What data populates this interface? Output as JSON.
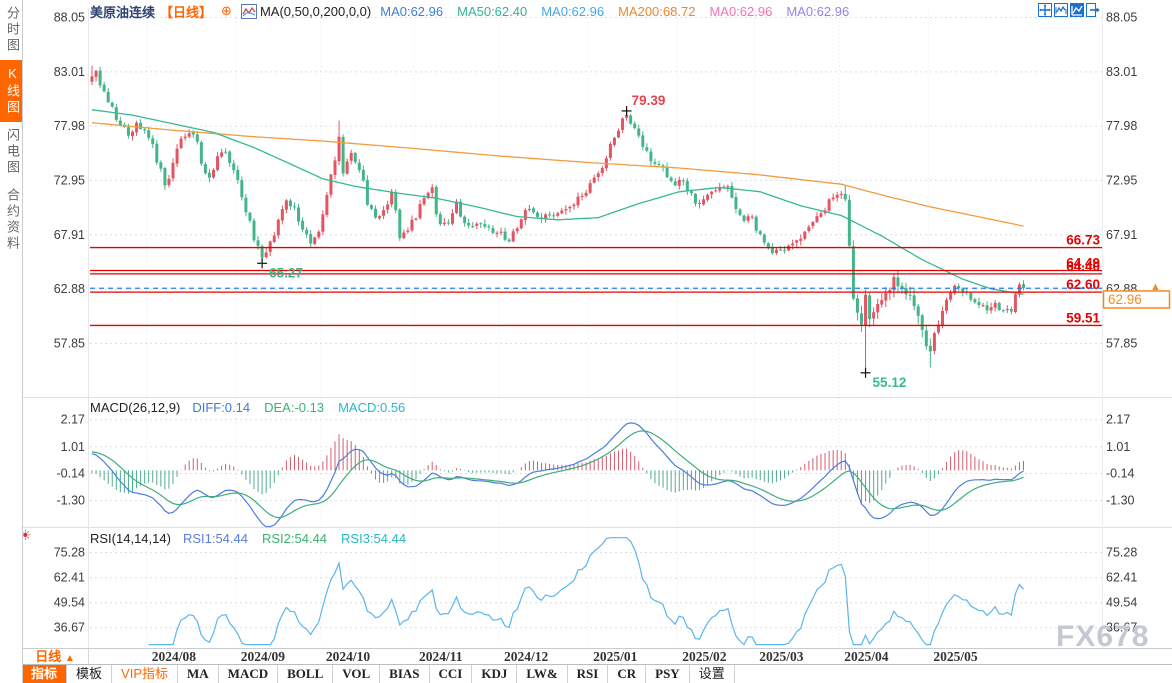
{
  "window": {
    "watermark": "FX678"
  },
  "sidebar": {
    "items": [
      {
        "label": "分时图",
        "active": false
      },
      {
        "label": "K线图",
        "active": true
      },
      {
        "label": "闪电图",
        "active": false
      },
      {
        "label": "合约资料",
        "active": false
      }
    ]
  },
  "header": {
    "symbol": "美原油连续",
    "period_tag": "【日线】",
    "plus_icon": "⊕",
    "ma_formula": "MA(0,50,0,200,0,0)",
    "ma_values": [
      {
        "label": "MA0:62.96",
        "color": "#3d7dd6"
      },
      {
        "label": "MA50:62.40",
        "color": "#33b294"
      },
      {
        "label": "MA0:62.96",
        "color": "#45a7e6"
      },
      {
        "label": "MA200:68.72",
        "color": "#f0862b"
      },
      {
        "label": "MA0:62.96",
        "color": "#f273b4"
      },
      {
        "label": "MA0:62.96",
        "color": "#8f86e8"
      }
    ],
    "icons": [
      "crosshair-move-icon",
      "candlestick-chart-icon",
      "line-chart-icon",
      "exit-chart-icon"
    ]
  },
  "price_panel": {
    "axis_values": [
      "88.05",
      "83.01",
      "77.98",
      "72.95",
      "67.91",
      "62.88",
      "57.85"
    ],
    "current_price": "62.96",
    "up_arrow": "▲"
  },
  "macd_panel": {
    "title": "MACD(26,12,9)",
    "values": [
      {
        "label": "DIFF:0.14",
        "color": "#3d7dd6"
      },
      {
        "label": "DEA:-0.13",
        "color": "#3bb273"
      },
      {
        "label": "MACD:0.56",
        "color": "#28b8c8"
      }
    ],
    "axis_values": [
      "2.17",
      "1.01",
      "-0.14",
      "-1.30"
    ]
  },
  "rsi_panel": {
    "title": "RSI(14,14,14)",
    "values": [
      {
        "label": "RSI1:54.44",
        "color": "#5b7de0"
      },
      {
        "label": "RSI2:54.44",
        "color": "#3bb273"
      },
      {
        "label": "RSI3:54.44",
        "color": "#28b8c8"
      }
    ],
    "axis_values": [
      "75.28",
      "62.41",
      "49.54",
      "36.67"
    ]
  },
  "bottom": {
    "period_label": "日线",
    "period_arrow": "▲"
  },
  "toolbar": {
    "tabs": [
      {
        "label": "指标",
        "variant": "active",
        "cn": true
      },
      {
        "label": "模板",
        "variant": "",
        "cn": true
      },
      {
        "label": "VIP指标",
        "variant": "vip",
        "cn": true
      },
      {
        "label": "MA",
        "variant": "",
        "cn": false
      },
      {
        "label": "MACD",
        "variant": "",
        "cn": false
      },
      {
        "label": "BOLL",
        "variant": "",
        "cn": false
      },
      {
        "label": "VOL",
        "variant": "",
        "cn": false
      },
      {
        "label": "BIAS",
        "variant": "",
        "cn": false
      },
      {
        "label": "CCI",
        "variant": "",
        "cn": false
      },
      {
        "label": "KDJ",
        "variant": "",
        "cn": false
      },
      {
        "label": "LW&",
        "variant": "",
        "cn": false
      },
      {
        "label": "RSI",
        "variant": "",
        "cn": false
      },
      {
        "label": "CR",
        "variant": "",
        "cn": false
      },
      {
        "label": "PSY",
        "variant": "",
        "cn": false
      },
      {
        "label": "设置",
        "variant": "",
        "cn": true
      }
    ]
  },
  "chart_data": {
    "type": "candlestick",
    "title": "美原油连续 日线",
    "days_total": 231,
    "months": [
      {
        "label": "2024/08",
        "start": 14
      },
      {
        "label": "2024/09",
        "start": 36
      },
      {
        "label": "2024/10",
        "start": 57
      },
      {
        "label": "2024/11",
        "start": 80
      },
      {
        "label": "2024/12",
        "start": 101
      },
      {
        "label": "2025/01",
        "start": 123
      },
      {
        "label": "2025/02",
        "start": 145
      },
      {
        "label": "2025/03",
        "start": 164
      },
      {
        "label": "2025/04",
        "start": 185
      },
      {
        "label": "2025/05",
        "start": 207
      }
    ],
    "price": {
      "ylim": [
        55.0,
        88.6
      ],
      "axis": [
        88.05,
        83.01,
        77.98,
        72.95,
        67.91,
        62.88,
        57.85
      ],
      "levels": [
        66.73,
        64.49,
        64.4,
        62.6,
        59.51
      ],
      "level_labels": [
        "66.73",
        "64.49",
        "64.40",
        "62.60",
        "59.51"
      ],
      "dashed_line": 62.96,
      "current": 62.96,
      "anchors": [
        [
          0,
          82.6
        ],
        [
          1,
          83.1
        ],
        [
          3,
          81.2
        ],
        [
          5,
          79.8
        ],
        [
          7,
          78.1
        ],
        [
          9,
          77.1
        ],
        [
          11,
          78.3
        ],
        [
          13,
          77.6
        ],
        [
          14,
          76.9
        ],
        [
          16,
          74.6
        ],
        [
          18,
          72.5
        ],
        [
          19,
          73.1
        ],
        [
          21,
          75.9
        ],
        [
          23,
          77.0
        ],
        [
          25,
          77.2
        ],
        [
          27,
          74.5
        ],
        [
          29,
          73.2
        ],
        [
          31,
          75.2
        ],
        [
          33,
          75.6
        ],
        [
          35,
          73.9
        ],
        [
          36,
          73.0
        ],
        [
          38,
          70.0
        ],
        [
          40,
          67.4
        ],
        [
          42,
          65.8
        ],
        [
          44,
          67.3
        ],
        [
          46,
          69.3
        ],
        [
          48,
          71.1
        ],
        [
          50,
          70.5
        ],
        [
          52,
          68.4
        ],
        [
          54,
          67.1
        ],
        [
          56,
          68.2
        ],
        [
          57,
          69.8
        ],
        [
          58,
          71.6
        ],
        [
          59,
          73.5
        ],
        [
          60,
          74.8
        ],
        [
          61,
          77.0
        ],
        [
          62,
          73.6
        ],
        [
          64,
          75.5
        ],
        [
          66,
          73.9
        ],
        [
          68,
          70.7
        ],
        [
          70,
          69.5
        ],
        [
          72,
          70.2
        ],
        [
          74,
          71.9
        ],
        [
          76,
          67.6
        ],
        [
          78,
          68.3
        ],
        [
          79,
          69.3
        ],
        [
          80,
          69.4
        ],
        [
          82,
          71.3
        ],
        [
          84,
          72.3
        ],
        [
          86,
          68.9
        ],
        [
          88,
          69.0
        ],
        [
          90,
          71.0
        ],
        [
          92,
          69.0
        ],
        [
          94,
          68.7
        ],
        [
          96,
          68.9
        ],
        [
          98,
          68.6
        ],
        [
          100,
          68.1
        ],
        [
          101,
          68.2
        ],
        [
          103,
          67.3
        ],
        [
          105,
          68.5
        ],
        [
          107,
          70.2
        ],
        [
          109,
          70.0
        ],
        [
          111,
          69.4
        ],
        [
          113,
          69.7
        ],
        [
          115,
          69.9
        ],
        [
          117,
          70.3
        ],
        [
          119,
          70.7
        ],
        [
          121,
          71.5
        ],
        [
          122,
          71.8
        ],
        [
          123,
          72.7
        ],
        [
          125,
          73.6
        ],
        [
          127,
          75.0
        ],
        [
          129,
          76.9
        ],
        [
          131,
          78.7
        ],
        [
          132,
          79.0
        ],
        [
          133,
          78.2
        ],
        [
          135,
          77.1
        ],
        [
          137,
          75.7
        ],
        [
          139,
          74.5
        ],
        [
          141,
          74.2
        ],
        [
          143,
          72.9
        ],
        [
          144,
          72.5
        ],
        [
          145,
          73.0
        ],
        [
          147,
          72.0
        ],
        [
          149,
          70.8
        ],
        [
          151,
          71.2
        ],
        [
          153,
          71.9
        ],
        [
          155,
          72.3
        ],
        [
          157,
          72.4
        ],
        [
          159,
          70.3
        ],
        [
          161,
          69.2
        ],
        [
          163,
          69.6
        ],
        [
          164,
          68.3
        ],
        [
          166,
          67.2
        ],
        [
          168,
          66.2
        ],
        [
          170,
          66.5
        ],
        [
          172,
          66.9
        ],
        [
          174,
          67.4
        ],
        [
          176,
          68.2
        ],
        [
          178,
          69.1
        ],
        [
          180,
          69.9
        ],
        [
          182,
          71.2
        ],
        [
          184,
          71.6
        ],
        [
          185,
          71.7
        ],
        [
          186,
          71.2
        ],
        [
          187,
          66.9
        ],
        [
          188,
          61.99
        ],
        [
          189,
          60.7
        ],
        [
          190,
          59.6
        ],
        [
          191,
          62.35
        ],
        [
          192,
          60.1
        ],
        [
          194,
          61.5
        ],
        [
          196,
          62.5
        ],
        [
          198,
          64.0
        ],
        [
          200,
          63.0
        ],
        [
          202,
          62.3
        ],
        [
          204,
          60.4
        ],
        [
          205,
          59.1
        ],
        [
          206,
          57.6
        ],
        [
          207,
          57.1
        ],
        [
          208,
          58.8
        ],
        [
          209,
          59.6
        ],
        [
          211,
          61.9
        ],
        [
          213,
          63.2
        ],
        [
          215,
          62.6
        ],
        [
          217,
          61.9
        ],
        [
          219,
          61.4
        ],
        [
          221,
          60.9
        ],
        [
          223,
          61.6
        ],
        [
          225,
          60.9
        ],
        [
          227,
          60.8
        ],
        [
          228,
          62.4
        ],
        [
          229,
          63.3
        ],
        [
          230,
          62.96
        ]
      ],
      "specials": {
        "0": {
          "high": 83.58
        },
        "42": {
          "low": 65.27
        },
        "61": {
          "high": 78.5
        },
        "132": {
          "high": 79.39
        },
        "191": {
          "low": 55.12
        },
        "207": {
          "low": 55.6
        }
      }
    },
    "annotations": [
      {
        "text": "79.39",
        "day": 132,
        "price": 79.39,
        "pos": "above",
        "color": "#e0444e"
      },
      {
        "text": "65.27",
        "day": 42,
        "price": 65.27,
        "pos": "below",
        "color": "#3cb98b"
      },
      {
        "text": "55.12",
        "day": 191,
        "price": 55.12,
        "pos": "below",
        "color": "#3cb98b"
      }
    ],
    "ma50": {
      "color": "#38b894",
      "anchors": [
        [
          0,
          79.5
        ],
        [
          10,
          79.0
        ],
        [
          20,
          78.2
        ],
        [
          30,
          77.4
        ],
        [
          40,
          76.0
        ],
        [
          50,
          74.3
        ],
        [
          57,
          73.1
        ],
        [
          65,
          72.4
        ],
        [
          75,
          71.8
        ],
        [
          85,
          71.3
        ],
        [
          95,
          70.5
        ],
        [
          105,
          69.6
        ],
        [
          115,
          69.3
        ],
        [
          125,
          69.5
        ],
        [
          135,
          70.8
        ],
        [
          145,
          71.9
        ],
        [
          155,
          72.3
        ],
        [
          165,
          71.9
        ],
        [
          175,
          70.6
        ],
        [
          185,
          69.7
        ],
        [
          195,
          67.8
        ],
        [
          205,
          65.6
        ],
        [
          215,
          63.8
        ],
        [
          222,
          62.9
        ],
        [
          230,
          62.4
        ]
      ]
    },
    "ma200": {
      "color": "#f49b3c",
      "anchors": [
        [
          0,
          78.3
        ],
        [
          20,
          77.6
        ],
        [
          40,
          77.0
        ],
        [
          57,
          76.6
        ],
        [
          80,
          75.9
        ],
        [
          101,
          75.2
        ],
        [
          123,
          74.6
        ],
        [
          145,
          74.1
        ],
        [
          164,
          73.5
        ],
        [
          185,
          72.6
        ],
        [
          195,
          71.6
        ],
        [
          207,
          70.5
        ],
        [
          220,
          69.5
        ],
        [
          230,
          68.72
        ]
      ]
    },
    "macd": {
      "params": [
        26,
        12,
        9
      ],
      "axis": [
        2.17,
        1.01,
        -0.14,
        -1.3
      ],
      "last": {
        "diff": 0.14,
        "dea": -0.13,
        "macd": 0.56
      }
    },
    "rsi": {
      "params": [
        14,
        14,
        14
      ],
      "axis": [
        75.28,
        62.41,
        49.54,
        36.67
      ],
      "last": 54.44
    },
    "colors": {
      "up": "#e25562",
      "down": "#45b488",
      "hist_up": "#d65c6c",
      "hist_down": "#51ab8e",
      "dif_line": "#4a7ede",
      "dea_line": "#3fae7d",
      "rsi_line": "#5ab6ea",
      "level_red": "#e60000",
      "dashed_blue": "#2e7bf0",
      "price_box_orange": "#f28a1e",
      "grid": "#d9dde2",
      "axis_text": "#3c3c3c"
    }
  }
}
